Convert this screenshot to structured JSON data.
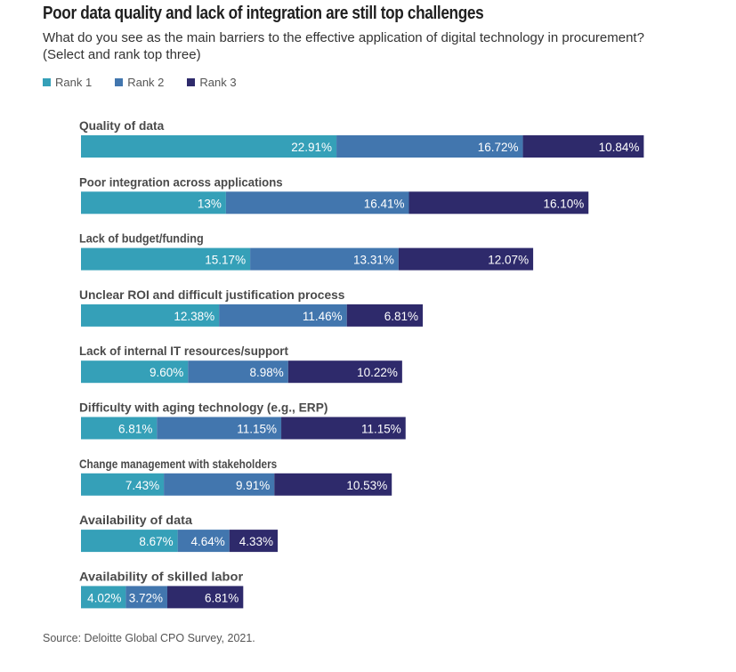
{
  "header": {
    "title": "Poor data quality and lack of integration are still top challenges",
    "subtitle": "What do you see as the main barriers to the effective application of digital technology in procurement? (Select and rank top three)"
  },
  "legend": [
    {
      "label": "Rank 1",
      "color": "#35a0b8"
    },
    {
      "label": "Rank 2",
      "color": "#4276ae"
    },
    {
      "label": "Rank 3",
      "color": "#2e2a6b"
    }
  ],
  "footer": {
    "source": "Source: Deloitte Global CPO Survey, 2021."
  },
  "chart_data": {
    "type": "bar",
    "orientation": "horizontal",
    "stacked": true,
    "title": "Poor data quality and lack of integration are still top challenges",
    "subtitle": "What do you see as the main barriers to the effective application of digital technology in procurement? (Select and rank top three)",
    "xlabel": "",
    "ylabel": "",
    "grid": false,
    "legend_position": "top-left",
    "categories": [
      "Quality of data",
      "Poor integration across applications",
      "Lack of budget/funding",
      "Unclear ROI and difficult justification process",
      "Lack of internal IT resources/support",
      "Difficulty with aging technology (e.g., ERP)",
      "Change management with stakeholders",
      "Availability of data",
      "Availability of skilled labor"
    ],
    "series": [
      {
        "name": "Rank 1",
        "color": "#35a0b8",
        "values": [
          22.91,
          13,
          15.17,
          12.38,
          9.6,
          6.81,
          7.43,
          8.67,
          4.02
        ],
        "labels": [
          "22.91%",
          "13%",
          "15.17%",
          "12.38%",
          "9.60%",
          "6.81%",
          "7.43%",
          "8.67%",
          "4.02%"
        ]
      },
      {
        "name": "Rank 2",
        "color": "#4276ae",
        "values": [
          16.72,
          16.41,
          13.31,
          11.46,
          8.98,
          11.15,
          9.91,
          4.64,
          3.72
        ],
        "labels": [
          "16.72%",
          "16.41%",
          "13.31%",
          "11.46%",
          "8.98%",
          "11.15%",
          "9.91%",
          "4.64%",
          "3.72%"
        ]
      },
      {
        "name": "Rank 3",
        "color": "#2e2a6b",
        "values": [
          10.84,
          16.1,
          12.07,
          6.81,
          10.22,
          11.15,
          10.53,
          4.33,
          6.81
        ],
        "labels": [
          "10.84%",
          "16.10%",
          "12.07%",
          "6.81%",
          "10.22%",
          "11.15%",
          "10.53%",
          "4.33%",
          "6.81%"
        ]
      }
    ],
    "source": "Source: Deloitte Global CPO Survey, 2021."
  }
}
